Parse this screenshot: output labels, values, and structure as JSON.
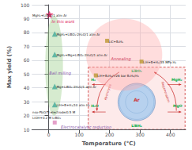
{
  "chart_data": {
    "type": "scatter",
    "xlabel": "Temperature (°C)",
    "ylabel": "Max yield (%)",
    "xlim": [
      -55,
      450
    ],
    "ylim": [
      10,
      100
    ],
    "xticks": [
      0,
      100,
      200,
      300,
      400
    ],
    "yticks": [
      10,
      20,
      30,
      40,
      50,
      60,
      70,
      80,
      90,
      100
    ],
    "grid": true,
    "series": [
      {
        "marker": "star",
        "color": "#dd1155",
        "x": [
          3
        ],
        "values": [
          93
        ]
      },
      {
        "marker": "triangle",
        "color": "#44aa99",
        "x": [
          20,
          20,
          20,
          20
        ],
        "values": [
          79,
          64,
          41,
          28
        ]
      },
      {
        "marker": "square",
        "color": "#bb9933",
        "x": [
          155,
          192,
          305
        ],
        "values": [
          49,
          74,
          59
        ]
      },
      {
        "marker": "square",
        "color": "#dd88bb",
        "x": [
          20
        ],
        "values": [
          15
        ]
      }
    ],
    "regions": [
      {
        "cx": 18,
        "cy": 56,
        "w": 58,
        "h": 72,
        "color": "#99cc88"
      },
      {
        "cx": 248,
        "cy": 64,
        "w": 250,
        "h": 52,
        "color": "#ffaaaa"
      }
    ],
    "point_labels": [
      {
        "x": -53,
        "y": 92.5,
        "text": "MgH₂+LiBO₂/1 atm Ar",
        "color": "#222222"
      },
      {
        "x": 26,
        "y": 78.5,
        "text": "MgH₂+LiBO₂·2H₂O/1 atm Ar",
        "color": "#222222"
      },
      {
        "x": 26,
        "y": 63.5,
        "text": "MgH₂+Mg+LiBO₂·2H₂O/1 atm Ar",
        "color": "#222222"
      },
      {
        "x": 26,
        "y": 40.5,
        "text": "Mg+LiBO₂·2H₂O/1 atm Ar",
        "color": "#222222"
      },
      {
        "x": 26,
        "y": 27.5,
        "text": "LiH+B+H₂/10 atm H₂",
        "color": "#222222"
      },
      {
        "x": 160,
        "y": 48.5,
        "text": "LiH+B₂H₆/>26 bar B₂H₆/H₂",
        "color": "#222222"
      },
      {
        "x": 197,
        "y": 73.5,
        "text": "LiC+B₂H₆",
        "color": "#222222"
      },
      {
        "x": 310,
        "y": 58.5,
        "text": "LiH+B+H₂/35 MPa H₂",
        "color": "#222222"
      },
      {
        "x": -53,
        "y": 22.5,
        "text": "nso-PbO/Ti electrode/0.5 M",
        "color": "#222222"
      },
      {
        "x": -53,
        "y": 18.5,
        "text": "LiOH+0.2 M LiBO₂",
        "color": "#222222"
      }
    ],
    "annotations": [
      {
        "x": 10,
        "y": 88,
        "text": "In this work",
        "color": "#dd1155"
      },
      {
        "x": 40,
        "y": 12,
        "text": "Electrocatalytic reduction",
        "color": "#8855aa"
      },
      {
        "x": 2,
        "y": 51,
        "text": "Ball milling",
        "color": "#8855aa"
      },
      {
        "x": 205,
        "y": 61,
        "text": "Annealing",
        "color": "#cc3355"
      }
    ],
    "inset": {
      "x": [
        130,
        448
      ],
      "y": [
        10,
        55
      ],
      "center": "Ar",
      "labels": [
        "LiBO₂",
        "MgH₂",
        "MgO",
        "LiBH₄",
        "H₂",
        "H₂O"
      ],
      "processes": [
        "Hydrolysis",
        "Regeneration"
      ],
      "bg": "#fdeaea",
      "border_color": "#cc3333",
      "circle_color": "#aaccee",
      "circle_edge": "#6688bb",
      "label_color": "#00aa44",
      "arrow_color": "#cc3333",
      "ar_color": "#cc3333"
    }
  }
}
